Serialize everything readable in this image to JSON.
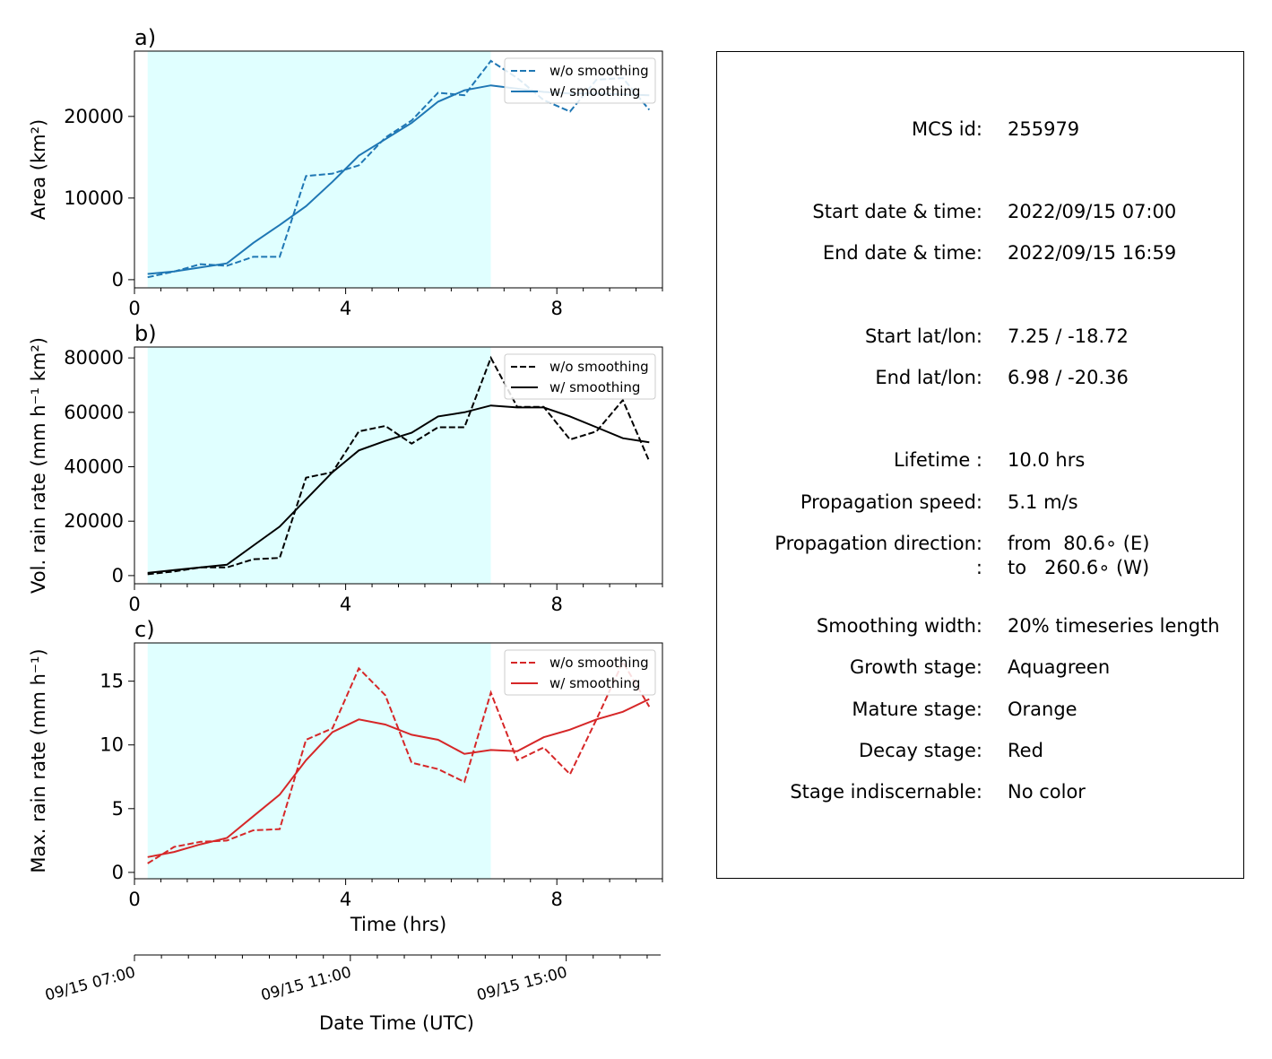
{
  "chart_data": [
    {
      "type": "line",
      "panel_label": "a)",
      "ylabel": "Area  (km²)",
      "xlim": [
        0,
        10
      ],
      "ylim": [
        -1000,
        28000
      ],
      "xticks": [
        0,
        4,
        8
      ],
      "yticks": [
        0,
        10000,
        20000
      ],
      "xticklabels": [
        "0",
        "4",
        "8"
      ],
      "yticklabels": [
        "0",
        "10000",
        "20000"
      ],
      "shaded_region": {
        "x_start": 0.25,
        "x_end": 6.75,
        "color": "#e0ffff"
      },
      "legend_position": "upper right",
      "x": [
        0.25,
        0.75,
        1.25,
        1.75,
        2.25,
        2.75,
        3.25,
        3.75,
        4.25,
        4.75,
        5.25,
        5.75,
        6.25,
        6.75,
        7.25,
        7.75,
        8.25,
        8.75,
        9.25,
        9.75
      ],
      "series": [
        {
          "name": "w/o smoothing",
          "style": "dashed",
          "color": "#1f77b4",
          "values": [
            300,
            1000,
            1900,
            1700,
            2800,
            2800,
            12700,
            13000,
            14000,
            17400,
            19500,
            22900,
            22600,
            26800,
            24700,
            22000,
            20600,
            24500,
            24700,
            20800
          ]
        },
        {
          "name": "w/ smoothing",
          "style": "solid",
          "color": "#1f77b4",
          "values": [
            700,
            1000,
            1500,
            2000,
            4500,
            6700,
            9000,
            12000,
            15200,
            17200,
            19200,
            21800,
            23200,
            23800,
            23400,
            23000,
            22800,
            22800,
            22700,
            22600
          ]
        }
      ]
    },
    {
      "type": "line",
      "panel_label": "b)",
      "ylabel": "Vol. rain rate (mm h⁻¹ km²)",
      "xlim": [
        0,
        10
      ],
      "ylim": [
        -3000,
        84000
      ],
      "xticks": [
        0,
        4,
        8
      ],
      "yticks": [
        0,
        20000,
        40000,
        60000,
        80000
      ],
      "xticklabels": [
        "0",
        "4",
        "8"
      ],
      "yticklabels": [
        "0",
        "20000",
        "40000",
        "60000",
        "80000"
      ],
      "shaded_region": {
        "x_start": 0.25,
        "x_end": 6.75,
        "color": "#e0ffff"
      },
      "legend_position": "upper right",
      "x": [
        0.25,
        0.75,
        1.25,
        1.75,
        2.25,
        2.75,
        3.25,
        3.75,
        4.25,
        4.75,
        5.25,
        5.75,
        6.25,
        6.75,
        7.25,
        7.75,
        8.25,
        8.75,
        9.25,
        9.75
      ],
      "series": [
        {
          "name": "w/o smoothing",
          "style": "dashed",
          "color": "#000000",
          "values": [
            500,
            1500,
            3000,
            3000,
            6000,
            6500,
            36000,
            38000,
            53000,
            55000,
            48500,
            54500,
            54500,
            80000,
            62000,
            62000,
            50000,
            53000,
            64500,
            42000
          ]
        },
        {
          "name": "w/ smoothing",
          "style": "solid",
          "color": "#000000",
          "values": [
            1000,
            2000,
            3000,
            4000,
            11000,
            18000,
            28000,
            38000,
            46000,
            49500,
            52500,
            58500,
            60000,
            62500,
            61800,
            61800,
            58500,
            54500,
            50500,
            49000
          ]
        }
      ]
    },
    {
      "type": "line",
      "panel_label": "c)",
      "ylabel": "Max. rain rate  (mm h⁻¹)",
      "xlabel": "Time (hrs)",
      "xlim": [
        0,
        10
      ],
      "ylim": [
        -0.5,
        18
      ],
      "xticks": [
        0,
        4,
        8
      ],
      "yticks": [
        0,
        5,
        10,
        15
      ],
      "xticklabels": [
        "0",
        "4",
        "8"
      ],
      "yticklabels": [
        "0",
        "5",
        "10",
        "15"
      ],
      "shaded_region": {
        "x_start": 0.25,
        "x_end": 6.75,
        "color": "#e0ffff"
      },
      "legend_position": "upper right",
      "x": [
        0.25,
        0.75,
        1.25,
        1.75,
        2.25,
        2.75,
        3.25,
        3.75,
        4.25,
        4.75,
        5.25,
        5.75,
        6.25,
        6.75,
        7.25,
        7.75,
        8.25,
        8.75,
        9.25,
        9.75
      ],
      "series": [
        {
          "name": "w/o smoothing",
          "style": "dashed",
          "color": "#d62728",
          "values": [
            0.7,
            2.0,
            2.4,
            2.5,
            3.3,
            3.4,
            10.4,
            11.3,
            16.0,
            13.9,
            8.6,
            8.1,
            7.1,
            14.1,
            8.8,
            9.8,
            7.7,
            12.0,
            16.5,
            13.0
          ]
        },
        {
          "name": "w/ smoothing",
          "style": "solid",
          "color": "#d62728",
          "values": [
            1.2,
            1.6,
            2.2,
            2.7,
            4.4,
            6.1,
            8.8,
            11.0,
            12.0,
            11.6,
            10.8,
            10.4,
            9.3,
            9.6,
            9.5,
            10.6,
            11.2,
            12.0,
            12.6,
            13.6
          ]
        }
      ]
    }
  ],
  "secondary_axis": {
    "xlabel": "Date Time (UTC)",
    "tick_labels": [
      "09/15 07:00",
      "09/15 11:00",
      "09/15 15:00"
    ]
  },
  "legend_labels": {
    "without": "w/o smoothing",
    "with": "w/ smoothing"
  },
  "info": {
    "rows": [
      {
        "label": "MCS id:",
        "value": "255979"
      },
      {
        "label": "Start date & time:",
        "value": "2022/09/15 07:00"
      },
      {
        "label": "End date & time:",
        "value": "2022/09/15 16:59"
      },
      {
        "label": "Start lat/lon:",
        "value": "7.25 / -18.72"
      },
      {
        "label": "End lat/lon:",
        "value": "6.98 / -20.36"
      },
      {
        "label": "Lifetime :",
        "value": "10.0 hrs"
      },
      {
        "label": "Propagation speed:",
        "value": "5.1 m/s"
      },
      {
        "label": "Propagation direction:",
        "value": "from  80.6∘ (E)"
      },
      {
        "label": ":",
        "value": "to   260.6∘ (W)"
      },
      {
        "label": "Smoothing width:",
        "value": "20% timeseries length"
      },
      {
        "label": "Growth stage:",
        "value": "Aquagreen"
      },
      {
        "label": "Mature stage:",
        "value": "Orange"
      },
      {
        "label": "Decay stage:",
        "value": "Red"
      },
      {
        "label": "Stage indiscernable:",
        "value": "No color"
      }
    ]
  }
}
